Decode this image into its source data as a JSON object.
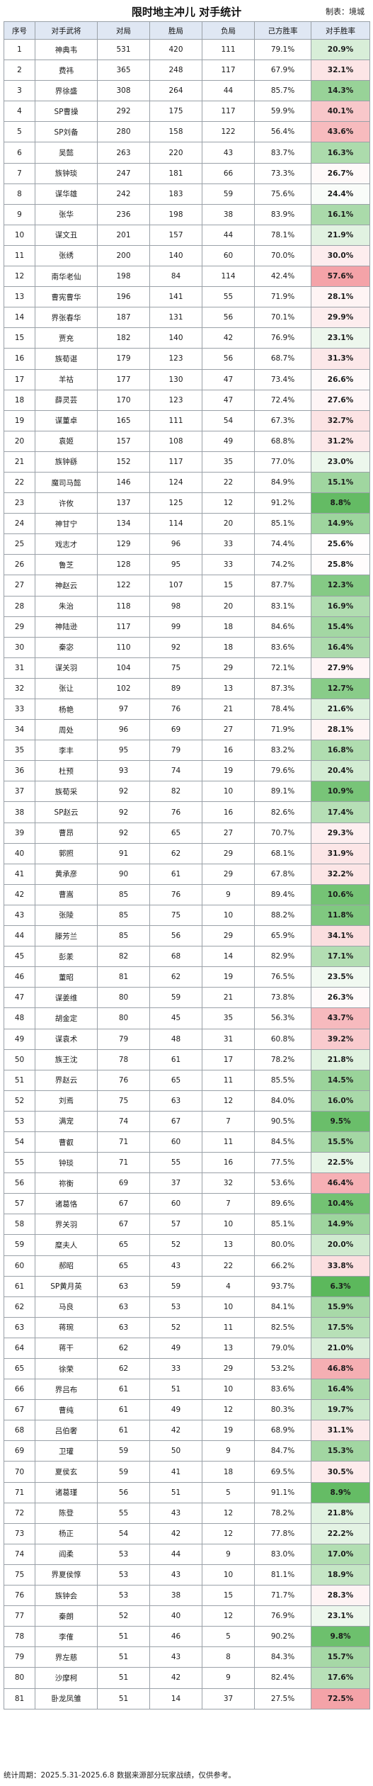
{
  "title": "限时地主冲儿 对手统计",
  "producer": "制表：境城",
  "footer": "统计周期：2025.5.31-2025.6.8    数据来源部分玩家战绩，仅供参考。",
  "colors": {
    "header_bg": "#dfe7f3",
    "high_pct": "#f4a3a8",
    "low_pct": "#5cb85c",
    "mid_pct": "#ffffff"
  },
  "chart_data": {
    "type": "table",
    "columns": [
      "序号",
      "对手武将",
      "对局",
      "胜局",
      "负局",
      "己方胜率",
      "对手胜率"
    ],
    "rows": [
      [
        "1",
        "神典韦",
        "531",
        "420",
        "111",
        "79.1%",
        "20.9%"
      ],
      [
        "2",
        "费祎",
        "365",
        "248",
        "117",
        "67.9%",
        "32.1%"
      ],
      [
        "3",
        "界徐盛",
        "308",
        "264",
        "44",
        "85.7%",
        "14.3%"
      ],
      [
        "4",
        "SP曹操",
        "292",
        "175",
        "117",
        "59.9%",
        "40.1%"
      ],
      [
        "5",
        "SP刘备",
        "280",
        "158",
        "122",
        "56.4%",
        "43.6%"
      ],
      [
        "6",
        "吴懿",
        "263",
        "220",
        "43",
        "83.7%",
        "16.3%"
      ],
      [
        "7",
        "族钟琰",
        "247",
        "181",
        "66",
        "73.3%",
        "26.7%"
      ],
      [
        "8",
        "谋华雄",
        "242",
        "183",
        "59",
        "75.6%",
        "24.4%"
      ],
      [
        "9",
        "张华",
        "236",
        "198",
        "38",
        "83.9%",
        "16.1%"
      ],
      [
        "10",
        "谋文丑",
        "201",
        "157",
        "44",
        "78.1%",
        "21.9%"
      ],
      [
        "11",
        "张绣",
        "200",
        "140",
        "60",
        "70.0%",
        "30.0%"
      ],
      [
        "12",
        "南华老仙",
        "198",
        "84",
        "114",
        "42.4%",
        "57.6%"
      ],
      [
        "13",
        "曹宪曹华",
        "196",
        "141",
        "55",
        "71.9%",
        "28.1%"
      ],
      [
        "14",
        "界张春华",
        "187",
        "131",
        "56",
        "70.1%",
        "29.9%"
      ],
      [
        "15",
        "贾充",
        "182",
        "140",
        "42",
        "76.9%",
        "23.1%"
      ],
      [
        "16",
        "族荀谌",
        "179",
        "123",
        "56",
        "68.7%",
        "31.3%"
      ],
      [
        "17",
        "羊祜",
        "177",
        "130",
        "47",
        "73.4%",
        "26.6%"
      ],
      [
        "18",
        "薛灵芸",
        "170",
        "123",
        "47",
        "72.4%",
        "27.6%"
      ],
      [
        "19",
        "谋董卓",
        "165",
        "111",
        "54",
        "67.3%",
        "32.7%"
      ],
      [
        "20",
        "袁姬",
        "157",
        "108",
        "49",
        "68.8%",
        "31.2%"
      ],
      [
        "21",
        "族钟繇",
        "152",
        "117",
        "35",
        "77.0%",
        "23.0%"
      ],
      [
        "22",
        "魔司马懿",
        "146",
        "124",
        "22",
        "84.9%",
        "15.1%"
      ],
      [
        "23",
        "许攸",
        "137",
        "125",
        "12",
        "91.2%",
        "8.8%"
      ],
      [
        "24",
        "神甘宁",
        "134",
        "114",
        "20",
        "85.1%",
        "14.9%"
      ],
      [
        "25",
        "戏志才",
        "129",
        "96",
        "33",
        "74.4%",
        "25.6%"
      ],
      [
        "26",
        "鲁芝",
        "128",
        "95",
        "33",
        "74.2%",
        "25.8%"
      ],
      [
        "27",
        "神赵云",
        "122",
        "107",
        "15",
        "87.7%",
        "12.3%"
      ],
      [
        "28",
        "朱治",
        "118",
        "98",
        "20",
        "83.1%",
        "16.9%"
      ],
      [
        "29",
        "神陆逊",
        "117",
        "99",
        "18",
        "84.6%",
        "15.4%"
      ],
      [
        "30",
        "秦宓",
        "110",
        "92",
        "18",
        "83.6%",
        "16.4%"
      ],
      [
        "31",
        "谋关羽",
        "104",
        "75",
        "29",
        "72.1%",
        "27.9%"
      ],
      [
        "32",
        "张让",
        "102",
        "89",
        "13",
        "87.3%",
        "12.7%"
      ],
      [
        "33",
        "杨艳",
        "97",
        "76",
        "21",
        "78.4%",
        "21.6%"
      ],
      [
        "34",
        "周处",
        "96",
        "69",
        "27",
        "71.9%",
        "28.1%"
      ],
      [
        "35",
        "李丰",
        "95",
        "79",
        "16",
        "83.2%",
        "16.8%"
      ],
      [
        "36",
        "杜预",
        "93",
        "74",
        "19",
        "79.6%",
        "20.4%"
      ],
      [
        "37",
        "族荀采",
        "92",
        "82",
        "10",
        "89.1%",
        "10.9%"
      ],
      [
        "38",
        "SP赵云",
        "92",
        "76",
        "16",
        "82.6%",
        "17.4%"
      ],
      [
        "39",
        "曹昂",
        "92",
        "65",
        "27",
        "70.7%",
        "29.3%"
      ],
      [
        "40",
        "郭照",
        "91",
        "62",
        "29",
        "68.1%",
        "31.9%"
      ],
      [
        "41",
        "黄承彦",
        "90",
        "61",
        "29",
        "67.8%",
        "32.2%"
      ],
      [
        "42",
        "曹嵩",
        "85",
        "76",
        "9",
        "89.4%",
        "10.6%"
      ],
      [
        "43",
        "张陵",
        "85",
        "75",
        "10",
        "88.2%",
        "11.8%"
      ],
      [
        "44",
        "滕芳兰",
        "85",
        "56",
        "29",
        "65.9%",
        "34.1%"
      ],
      [
        "45",
        "彭羕",
        "82",
        "68",
        "14",
        "82.9%",
        "17.1%"
      ],
      [
        "46",
        "董昭",
        "81",
        "62",
        "19",
        "76.5%",
        "23.5%"
      ],
      [
        "47",
        "谋姜维",
        "80",
        "59",
        "21",
        "73.8%",
        "26.3%"
      ],
      [
        "48",
        "胡金定",
        "80",
        "45",
        "35",
        "56.3%",
        "43.7%"
      ],
      [
        "49",
        "谋袁术",
        "79",
        "48",
        "31",
        "60.8%",
        "39.2%"
      ],
      [
        "50",
        "族王沈",
        "78",
        "61",
        "17",
        "78.2%",
        "21.8%"
      ],
      [
        "51",
        "界赵云",
        "76",
        "65",
        "11",
        "85.5%",
        "14.5%"
      ],
      [
        "52",
        "刘焉",
        "75",
        "63",
        "12",
        "84.0%",
        "16.0%"
      ],
      [
        "53",
        "满宠",
        "74",
        "67",
        "7",
        "90.5%",
        "9.5%"
      ],
      [
        "54",
        "曹叡",
        "71",
        "60",
        "11",
        "84.5%",
        "15.5%"
      ],
      [
        "55",
        "钟琰",
        "71",
        "55",
        "16",
        "77.5%",
        "22.5%"
      ],
      [
        "56",
        "祢衡",
        "69",
        "37",
        "32",
        "53.6%",
        "46.4%"
      ],
      [
        "57",
        "诸葛恪",
        "67",
        "60",
        "7",
        "89.6%",
        "10.4%"
      ],
      [
        "58",
        "界关羽",
        "67",
        "57",
        "10",
        "85.1%",
        "14.9%"
      ],
      [
        "59",
        "糜夫人",
        "65",
        "52",
        "13",
        "80.0%",
        "20.0%"
      ],
      [
        "60",
        "郝昭",
        "65",
        "43",
        "22",
        "66.2%",
        "33.8%"
      ],
      [
        "61",
        "SP黄月英",
        "63",
        "59",
        "4",
        "93.7%",
        "6.3%"
      ],
      [
        "62",
        "马良",
        "63",
        "53",
        "10",
        "84.1%",
        "15.9%"
      ],
      [
        "63",
        "蒋琬",
        "63",
        "52",
        "11",
        "82.5%",
        "17.5%"
      ],
      [
        "64",
        "蒋干",
        "62",
        "49",
        "13",
        "79.0%",
        "21.0%"
      ],
      [
        "65",
        "徐荣",
        "62",
        "33",
        "29",
        "53.2%",
        "46.8%"
      ],
      [
        "66",
        "界吕布",
        "61",
        "51",
        "10",
        "83.6%",
        "16.4%"
      ],
      [
        "67",
        "曹纯",
        "61",
        "49",
        "12",
        "80.3%",
        "19.7%"
      ],
      [
        "68",
        "吕伯奢",
        "61",
        "42",
        "19",
        "68.9%",
        "31.1%"
      ],
      [
        "69",
        "卫瓘",
        "59",
        "50",
        "9",
        "84.7%",
        "15.3%"
      ],
      [
        "70",
        "夏侯玄",
        "59",
        "41",
        "18",
        "69.5%",
        "30.5%"
      ],
      [
        "71",
        "诸葛瑾",
        "56",
        "51",
        "5",
        "91.1%",
        "8.9%"
      ],
      [
        "72",
        "陈登",
        "55",
        "43",
        "12",
        "78.2%",
        "21.8%"
      ],
      [
        "73",
        "杨正",
        "54",
        "42",
        "12",
        "77.8%",
        "22.2%"
      ],
      [
        "74",
        "阎柔",
        "53",
        "44",
        "9",
        "83.0%",
        "17.0%"
      ],
      [
        "75",
        "界夏侯惇",
        "53",
        "43",
        "10",
        "81.1%",
        "18.9%"
      ],
      [
        "76",
        "族钟会",
        "53",
        "38",
        "15",
        "71.7%",
        "28.3%"
      ],
      [
        "77",
        "秦朗",
        "52",
        "40",
        "12",
        "76.9%",
        "23.1%"
      ],
      [
        "78",
        "李傕",
        "51",
        "46",
        "5",
        "90.2%",
        "9.8%"
      ],
      [
        "79",
        "界左慈",
        "51",
        "43",
        "8",
        "84.3%",
        "15.7%"
      ],
      [
        "80",
        "沙摩柯",
        "51",
        "42",
        "9",
        "82.4%",
        "17.6%"
      ],
      [
        "81",
        "卧龙凤雏",
        "51",
        "14",
        "37",
        "27.5%",
        "72.5%"
      ]
    ]
  }
}
